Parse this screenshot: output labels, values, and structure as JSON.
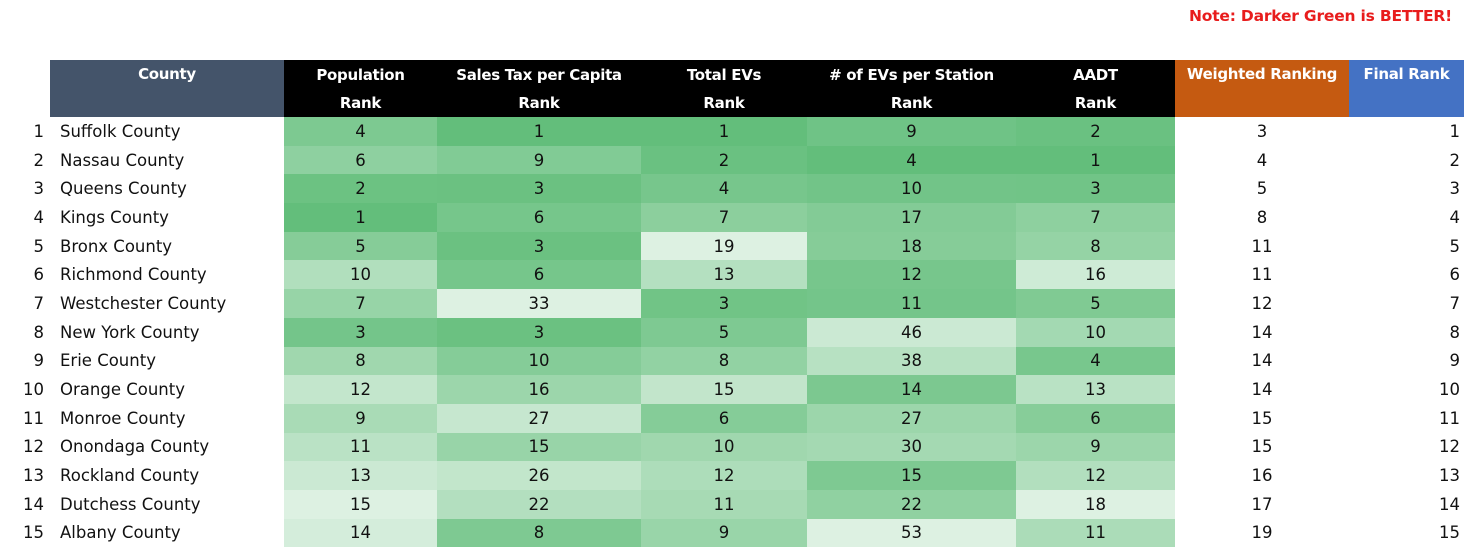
{
  "note": "Note: Darker Green is BETTER!",
  "headers": {
    "county": "County",
    "population": [
      "Population",
      "Rank"
    ],
    "sales_tax": [
      "Sales Tax per Capita",
      "Rank"
    ],
    "total_evs": [
      "Total EVs",
      "Rank"
    ],
    "evs_per_station": [
      "# of EVs per Station",
      "Rank"
    ],
    "aadt": [
      "AADT",
      "Rank"
    ],
    "weighted": "Weighted Ranking",
    "final": "Final Rank"
  },
  "colors": {
    "county_header": "#44546a",
    "rank_header": "#000000",
    "weighted_header": "#c55a11",
    "final_header": "#4472c4",
    "note": "#e81c1c",
    "scale_best": "#63be7b",
    "scale_worst": "#ffffff"
  },
  "rows": [
    {
      "idx": "1",
      "county": "Suffolk County",
      "population": "4",
      "sales_tax": "1",
      "total_evs": "1",
      "evs_per_station": "9",
      "aadt": "2",
      "weighted": "3",
      "final": "1"
    },
    {
      "idx": "2",
      "county": "Nassau County",
      "population": "6",
      "sales_tax": "9",
      "total_evs": "2",
      "evs_per_station": "4",
      "aadt": "1",
      "weighted": "4",
      "final": "2"
    },
    {
      "idx": "3",
      "county": "Queens County",
      "population": "2",
      "sales_tax": "3",
      "total_evs": "4",
      "evs_per_station": "10",
      "aadt": "3",
      "weighted": "5",
      "final": "3"
    },
    {
      "idx": "4",
      "county": "Kings County",
      "population": "1",
      "sales_tax": "6",
      "total_evs": "7",
      "evs_per_station": "17",
      "aadt": "7",
      "weighted": "8",
      "final": "4"
    },
    {
      "idx": "5",
      "county": "Bronx County",
      "population": "5",
      "sales_tax": "3",
      "total_evs": "19",
      "evs_per_station": "18",
      "aadt": "8",
      "weighted": "11",
      "final": "5"
    },
    {
      "idx": "6",
      "county": "Richmond County",
      "population": "10",
      "sales_tax": "6",
      "total_evs": "13",
      "evs_per_station": "12",
      "aadt": "16",
      "weighted": "11",
      "final": "6"
    },
    {
      "idx": "7",
      "county": "Westchester County",
      "population": "7",
      "sales_tax": "33",
      "total_evs": "3",
      "evs_per_station": "11",
      "aadt": "5",
      "weighted": "12",
      "final": "7"
    },
    {
      "idx": "8",
      "county": "New York County",
      "population": "3",
      "sales_tax": "3",
      "total_evs": "5",
      "evs_per_station": "46",
      "aadt": "10",
      "weighted": "14",
      "final": "8"
    },
    {
      "idx": "9",
      "county": "Erie County",
      "population": "8",
      "sales_tax": "10",
      "total_evs": "8",
      "evs_per_station": "38",
      "aadt": "4",
      "weighted": "14",
      "final": "9"
    },
    {
      "idx": "10",
      "county": "Orange County",
      "population": "12",
      "sales_tax": "16",
      "total_evs": "15",
      "evs_per_station": "14",
      "aadt": "13",
      "weighted": "14",
      "final": "10"
    },
    {
      "idx": "11",
      "county": "Monroe County",
      "population": "9",
      "sales_tax": "27",
      "total_evs": "6",
      "evs_per_station": "27",
      "aadt": "6",
      "weighted": "15",
      "final": "11"
    },
    {
      "idx": "12",
      "county": "Onondaga County",
      "population": "11",
      "sales_tax": "15",
      "total_evs": "10",
      "evs_per_station": "30",
      "aadt": "9",
      "weighted": "15",
      "final": "12"
    },
    {
      "idx": "13",
      "county": "Rockland County",
      "population": "13",
      "sales_tax": "26",
      "total_evs": "12",
      "evs_per_station": "15",
      "aadt": "12",
      "weighted": "16",
      "final": "13"
    },
    {
      "idx": "14",
      "county": "Dutchess County",
      "population": "15",
      "sales_tax": "22",
      "total_evs": "11",
      "evs_per_station": "22",
      "aadt": "18",
      "weighted": "17",
      "final": "14"
    },
    {
      "idx": "15",
      "county": "Albany County",
      "population": "14",
      "sales_tax": "8",
      "total_evs": "9",
      "evs_per_station": "53",
      "aadt": "11",
      "weighted": "19",
      "final": "15"
    }
  ]
}
